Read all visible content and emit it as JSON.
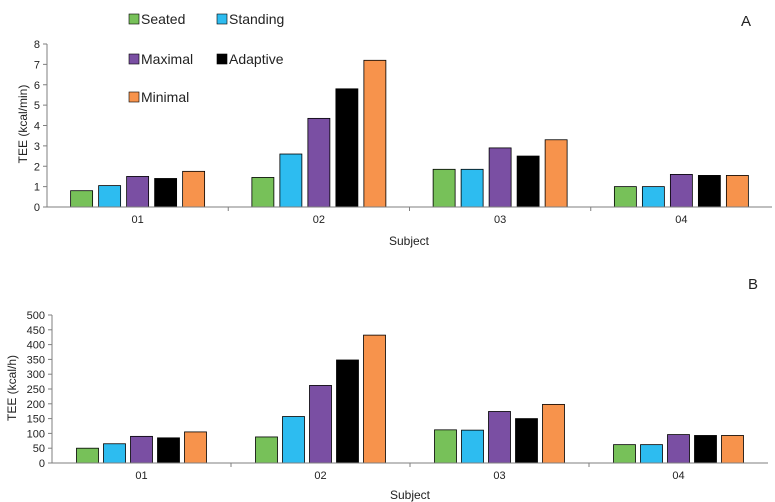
{
  "chart_data": [
    {
      "type": "bar",
      "panel_label": "A",
      "categories": [
        "01",
        "02",
        "03",
        "04"
      ],
      "xlabel": "Subject",
      "ylabel": "TEE (kcal/min)",
      "ylim": [
        0,
        8
      ],
      "yticks": [
        0,
        1,
        2,
        3,
        4,
        5,
        6,
        7,
        8
      ],
      "grid": false,
      "legend": "top-left",
      "series": [
        {
          "name": "Seated",
          "color": "#77c159",
          "values": [
            0.8,
            1.45,
            1.85,
            1.0
          ]
        },
        {
          "name": "Standing",
          "color": "#2dbcf0",
          "values": [
            1.05,
            2.6,
            1.85,
            1.0
          ]
        },
        {
          "name": "Maximal",
          "color": "#7a4fa3",
          "values": [
            1.5,
            4.35,
            2.9,
            1.6
          ]
        },
        {
          "name": "Adaptive",
          "color": "#000000",
          "values": [
            1.4,
            5.8,
            2.5,
            1.55
          ]
        },
        {
          "name": "Minimal",
          "color": "#f7934c",
          "values": [
            1.75,
            7.2,
            3.3,
            1.55
          ]
        }
      ]
    },
    {
      "type": "bar",
      "panel_label": "B",
      "categories": [
        "01",
        "02",
        "03",
        "04"
      ],
      "xlabel": "Subject",
      "ylabel": "TEE (kcal/h)",
      "ylim": [
        0,
        500
      ],
      "yticks": [
        0,
        50,
        100,
        150,
        200,
        250,
        300,
        350,
        400,
        450,
        500
      ],
      "grid": false,
      "series": [
        {
          "name": "Seated",
          "color": "#77c159",
          "values": [
            50,
            88,
            112,
            62
          ]
        },
        {
          "name": "Standing",
          "color": "#2dbcf0",
          "values": [
            65,
            157,
            111,
            62
          ]
        },
        {
          "name": "Maximal",
          "color": "#7a4fa3",
          "values": [
            90,
            262,
            174,
            96
          ]
        },
        {
          "name": "Adaptive",
          "color": "#000000",
          "values": [
            85,
            348,
            150,
            93
          ]
        },
        {
          "name": "Minimal",
          "color": "#f7934c",
          "values": [
            105,
            432,
            198,
            93
          ]
        }
      ]
    }
  ]
}
